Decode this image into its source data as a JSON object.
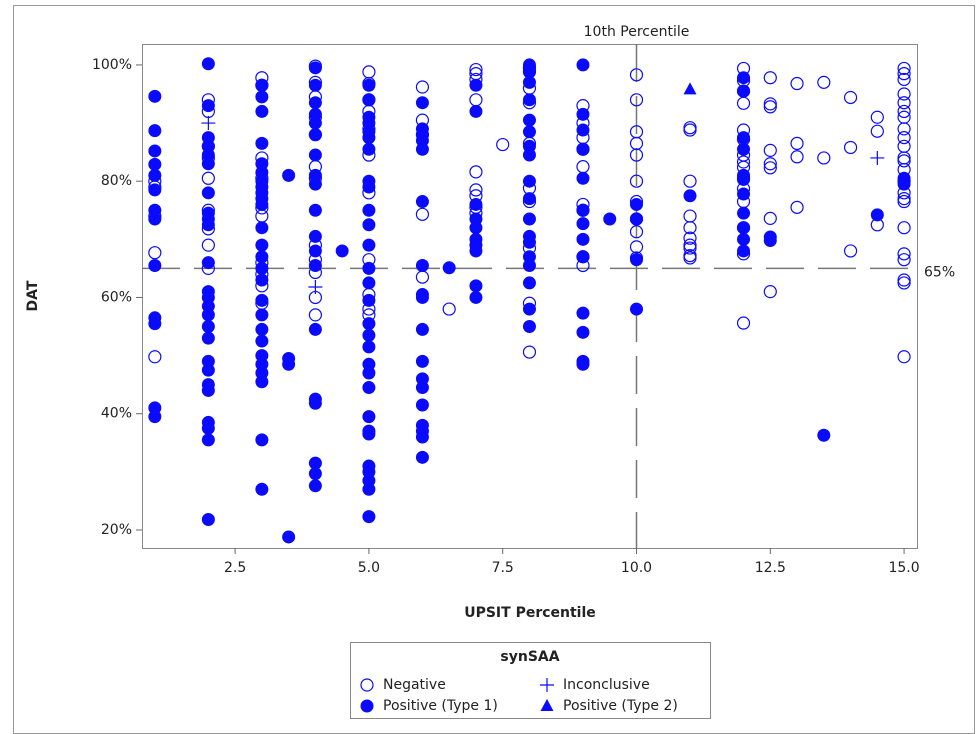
{
  "chart_data": {
    "type": "scatter",
    "x_label": "UPSIT Percentile",
    "y_label": "DAT",
    "xlim": [
      0.76,
      15.26
    ],
    "ylim": [
      16.9,
      103.6
    ],
    "xticks": [
      2.5,
      {
        "value": 5,
        "label": "5.0"
      },
      7.5,
      {
        "value": 10,
        "label": "10.0"
      },
      12.5,
      {
        "value": 15,
        "label": "15.0"
      }
    ],
    "yticks": [
      {
        "value": 20,
        "label": "20%"
      },
      {
        "value": 40,
        "label": "40%"
      },
      {
        "value": 60,
        "label": "60%"
      },
      {
        "value": 80,
        "label": "80%"
      },
      {
        "value": 100,
        "label": "100%"
      }
    ],
    "reference_lines": [
      {
        "axis": "x",
        "value": 10,
        "label": "10th Percentile"
      },
      {
        "axis": "y",
        "value": 65,
        "label": "65%"
      }
    ],
    "legend_title": "synSAA",
    "legend_position": "bottom",
    "series": [
      {
        "name": "Negative",
        "color": "#0a0aff",
        "marker": "open-circle",
        "x": [
          1,
          1,
          1,
          1,
          1,
          2,
          2,
          2,
          2,
          2,
          2,
          2,
          2,
          2,
          3,
          3,
          3,
          3,
          3,
          3,
          3,
          3,
          3,
          3,
          4,
          4,
          4,
          4,
          4,
          4,
          4,
          4,
          4,
          4,
          4,
          4,
          5,
          5,
          5,
          5,
          5,
          5,
          5,
          5,
          5,
          5,
          5,
          6,
          6,
          6,
          6,
          6,
          6.5,
          7,
          7,
          7,
          7,
          7,
          7,
          7,
          7,
          7,
          7.5,
          8,
          8,
          8,
          8,
          8,
          8,
          8,
          8,
          8,
          8,
          9,
          9,
          9,
          9,
          9,
          9,
          9,
          9,
          9,
          10,
          10,
          10,
          10,
          10,
          10,
          10,
          10,
          10,
          10,
          10,
          11,
          11,
          11,
          11,
          11,
          11,
          11,
          11,
          11,
          11,
          12,
          12,
          12,
          12,
          12,
          12,
          12,
          12,
          12,
          12,
          12,
          12,
          12,
          12,
          12,
          12.5,
          12.5,
          12.5,
          12.5,
          12.5,
          12.5,
          12.5,
          12.5,
          13,
          13,
          13,
          13,
          13.5,
          13.5,
          14,
          14,
          14,
          14.5,
          14.5,
          14.5,
          15,
          15,
          15,
          15,
          15,
          15,
          15,
          15,
          15,
          15,
          15,
          15,
          15,
          15,
          15,
          15,
          15,
          15,
          15,
          15,
          15,
          15,
          15
        ],
        "y": [
          80,
          79,
          74,
          67.7,
          49.8,
          94,
          92,
          86,
          84,
          80.5,
          75,
          71.8,
          69,
          65,
          97.8,
          96.5,
          84,
          80.5,
          75.4,
          74,
          66,
          64,
          62,
          59,
          99.8,
          97,
          94.5,
          91,
          88,
          82.5,
          80.5,
          69,
          66.5,
          64.3,
          60,
          57,
          98.8,
          96.8,
          94,
          92,
          89,
          84.5,
          78,
          66.5,
          60.5,
          58,
          57,
          96.2,
          90.5,
          88,
          74.3,
          63.5,
          58,
          99.2,
          98.5,
          97.5,
          94,
          81.6,
          78.5,
          77.5,
          75.5,
          74.5,
          86.3,
          99.5,
          98.8,
          96,
          93.5,
          86.5,
          78.8,
          76.5,
          68.5,
          59,
          50.6,
          93,
          90,
          87.5,
          85.5,
          82.5,
          76,
          75,
          67,
          65.5,
          98.3,
          94,
          88.5,
          86.5,
          84.5,
          80,
          76.5,
          73.5,
          71.3,
          68.7,
          66.8,
          89.2,
          88.8,
          80,
          74,
          72,
          70.2,
          69,
          68.5,
          67.2,
          66.8,
          99.4,
          97.3,
          95.5,
          93.4,
          88.8,
          87.2,
          84.5,
          83.3,
          82.4,
          80.5,
          78.7,
          76.5,
          72,
          67.5,
          55.6,
          97.8,
          93.3,
          92.8,
          85.3,
          83,
          82.3,
          73.6,
          61,
          96.8,
          86.5,
          84.2,
          75.5,
          97,
          84,
          94.4,
          85.8,
          68,
          91,
          88.6,
          72.5,
          99.4,
          98.5,
          97.5,
          95,
          93.5,
          92,
          91,
          89,
          87.5,
          86,
          84,
          83.5,
          82,
          80,
          78,
          77,
          76.5,
          72,
          67.5,
          66.5,
          63,
          62.5,
          49.8
        ]
      },
      {
        "name": "Positive (Type 1)",
        "color": "#0a0aff",
        "marker": "filled-circle",
        "x": [
          1,
          1,
          1,
          1,
          1,
          1,
          1,
          1,
          1,
          1,
          1,
          1,
          1,
          2,
          2,
          2,
          2,
          2,
          2,
          2,
          2,
          2,
          2,
          2,
          2,
          2,
          2,
          2,
          2,
          2,
          2,
          2,
          2,
          2,
          2,
          2,
          2,
          2,
          3,
          3,
          3,
          3,
          3,
          3,
          3,
          3,
          3,
          3,
          3,
          3,
          3,
          3,
          3,
          3,
          3,
          3,
          3,
          3,
          3,
          3,
          3,
          3,
          3,
          3,
          3.5,
          3.5,
          3.5,
          3.5,
          4,
          4,
          4,
          4,
          4,
          4,
          4,
          4,
          4,
          4,
          4,
          4,
          4,
          4,
          4,
          4,
          4,
          4,
          4,
          4.5,
          5,
          5,
          5,
          5,
          5,
          5,
          5,
          5,
          5,
          5,
          5,
          5,
          5,
          5,
          5,
          5,
          5,
          5,
          5,
          5,
          5,
          5,
          5,
          5,
          5,
          5,
          5,
          5,
          5,
          6,
          6,
          6,
          6,
          6,
          6,
          6,
          6,
          6,
          6,
          6,
          6,
          6,
          6,
          6,
          6,
          6,
          6,
          6.5,
          7,
          7,
          7,
          7,
          7,
          7,
          7,
          7,
          7,
          7,
          8,
          8,
          8,
          8,
          8,
          8,
          8,
          8,
          8,
          8,
          8,
          8,
          8,
          8,
          8,
          8,
          8,
          8,
          9,
          9,
          9,
          9,
          9,
          9,
          9,
          9,
          9,
          9,
          9,
          9,
          9,
          9.5,
          10,
          10,
          10,
          10,
          11,
          12,
          12,
          12,
          12,
          12,
          12,
          12,
          12,
          12,
          12,
          12,
          12.5,
          12.5,
          13.5,
          14.5,
          15,
          15
        ],
        "y": [
          94.6,
          88.7,
          85.2,
          82.9,
          81,
          78.5,
          75,
          73.5,
          65.5,
          56.5,
          55.5,
          41,
          39.5,
          100.2,
          93,
          87.5,
          86,
          84.5,
          83,
          78,
          74.5,
          73.5,
          72.5,
          66,
          61,
          60,
          58.5,
          57,
          55,
          53,
          49,
          47.5,
          45,
          44,
          38.5,
          37.5,
          35.5,
          21.8,
          96.5,
          94.5,
          92,
          86.5,
          83,
          81.5,
          80,
          79,
          78,
          77,
          76,
          72,
          69,
          67,
          65,
          63,
          59.5,
          57,
          54.5,
          52.5,
          50,
          48.5,
          47,
          45.5,
          35.5,
          27,
          81,
          49.5,
          48.5,
          18.8,
          99.5,
          96.5,
          93.5,
          91.5,
          90,
          88,
          84.5,
          81,
          79.5,
          75,
          70.5,
          68,
          65.5,
          54.5,
          42.5,
          31.5,
          29.7,
          27.6,
          41.8,
          68,
          96.5,
          94,
          91,
          90,
          88.5,
          87.5,
          85.5,
          80,
          79,
          75,
          72.5,
          69,
          65,
          62.5,
          59.5,
          55.5,
          53.5,
          51.5,
          48.5,
          47,
          44.5,
          39.5,
          37,
          36.5,
          31,
          30,
          28.5,
          27,
          22.3,
          93.5,
          89,
          88,
          87,
          85.5,
          76.5,
          65.5,
          60.5,
          60,
          54.5,
          49,
          46,
          44.5,
          41.5,
          38,
          37,
          36,
          32.5,
          65.1,
          96.5,
          92,
          76,
          73.5,
          72,
          70,
          69,
          68,
          62,
          60,
          100,
          99,
          97,
          94,
          90.5,
          88.5,
          86,
          84.5,
          80,
          77,
          73.5,
          70.5,
          69.5,
          67,
          65.5,
          62.5,
          58,
          55,
          100,
          91.5,
          88.8,
          85.5,
          80.5,
          75,
          72.7,
          70,
          67,
          57.3,
          54,
          49,
          48.5,
          73.5,
          76,
          73.5,
          66.5,
          58,
          77.5,
          97.8,
          95.5,
          87.5,
          85.5,
          81,
          80.3,
          77.8,
          74.5,
          72,
          70,
          68,
          70.4,
          69.8,
          36.3,
          74.2,
          80.5,
          79.5
        ]
      },
      {
        "name": "Inconclusive",
        "color": "#0a0aff",
        "marker": "plus",
        "x": [
          2,
          4,
          14.5
        ],
        "y": [
          90,
          61.8,
          84
        ]
      },
      {
        "name": "Positive (Type 2)",
        "color": "#0a0aff",
        "marker": "triangle",
        "x": [
          11
        ],
        "y": [
          95.8
        ]
      }
    ]
  }
}
